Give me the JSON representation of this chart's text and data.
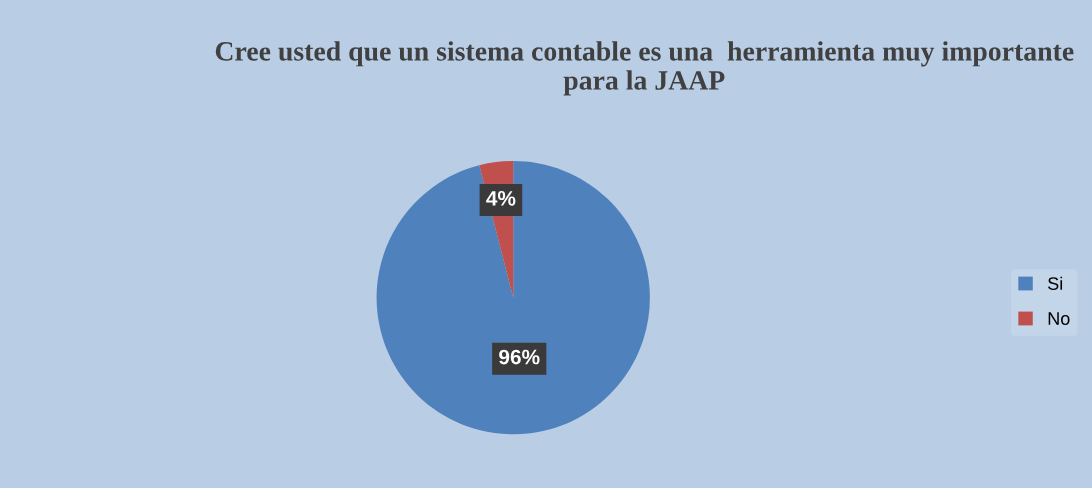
{
  "chart_data": {
    "type": "pie",
    "title": "Cree usted que un sistema contable es una  herramienta muy importante para la JAAP",
    "categories": [
      "Si",
      "No"
    ],
    "values": [
      96,
      4
    ],
    "colors": [
      "#4f81bd",
      "#c0504d"
    ],
    "value_labels": [
      "96%",
      "4%"
    ],
    "legend": "right"
  }
}
